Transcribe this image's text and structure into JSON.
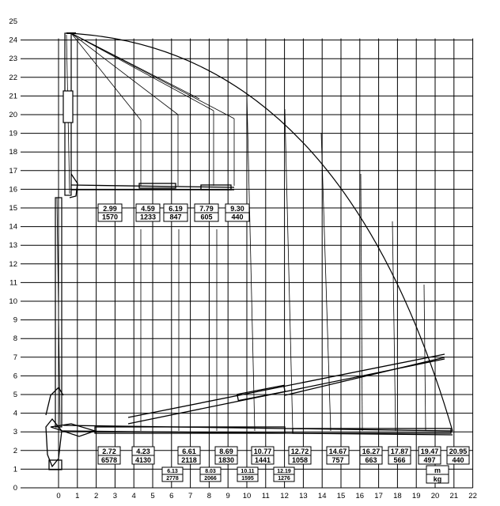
{
  "axes": {
    "x_ticks": [
      "0",
      "1",
      "2",
      "3",
      "4",
      "5",
      "6",
      "7",
      "8",
      "9",
      "10",
      "11",
      "12",
      "13",
      "14",
      "15",
      "16",
      "17",
      "18",
      "19",
      "20",
      "21",
      "22"
    ],
    "y_ticks": [
      "0",
      "1",
      "2",
      "3",
      "4",
      "5",
      "6",
      "7",
      "8",
      "9",
      "10",
      "11",
      "12",
      "13",
      "14",
      "15",
      "16",
      "17",
      "18",
      "19",
      "20",
      "21",
      "22",
      "23",
      "24",
      "25"
    ]
  },
  "upper_loads": [
    {
      "reach": "2.99",
      "load": "1570"
    },
    {
      "reach": "4.59",
      "load": "1233"
    },
    {
      "reach": "6.19",
      "load": "847"
    },
    {
      "reach": "7.79",
      "load": "605"
    },
    {
      "reach": "9.30",
      "load": "440"
    }
  ],
  "lower_loads": [
    {
      "reach": "2.72",
      "load": "6578"
    },
    {
      "reach": "4.23",
      "load": "4130"
    },
    {
      "reach": "6.61",
      "load": "2118"
    },
    {
      "reach": "8.69",
      "load": "1830"
    },
    {
      "reach": "10.77",
      "load": "1441"
    },
    {
      "reach": "12.72",
      "load": "1058"
    },
    {
      "reach": "14.67",
      "load": "757"
    },
    {
      "reach": "16.27",
      "load": "663"
    },
    {
      "reach": "17.87",
      "load": "566"
    },
    {
      "reach": "19.47",
      "load": "497"
    },
    {
      "reach": "20.95",
      "load": "440"
    }
  ],
  "small_loads": [
    {
      "reach": "6.13",
      "load": "2778"
    },
    {
      "reach": "8.03",
      "load": "2066"
    },
    {
      "reach": "10.11",
      "load": "1595"
    },
    {
      "reach": "12.19",
      "load": "1276"
    }
  ],
  "units": {
    "length": "m",
    "mass": "kg"
  }
}
